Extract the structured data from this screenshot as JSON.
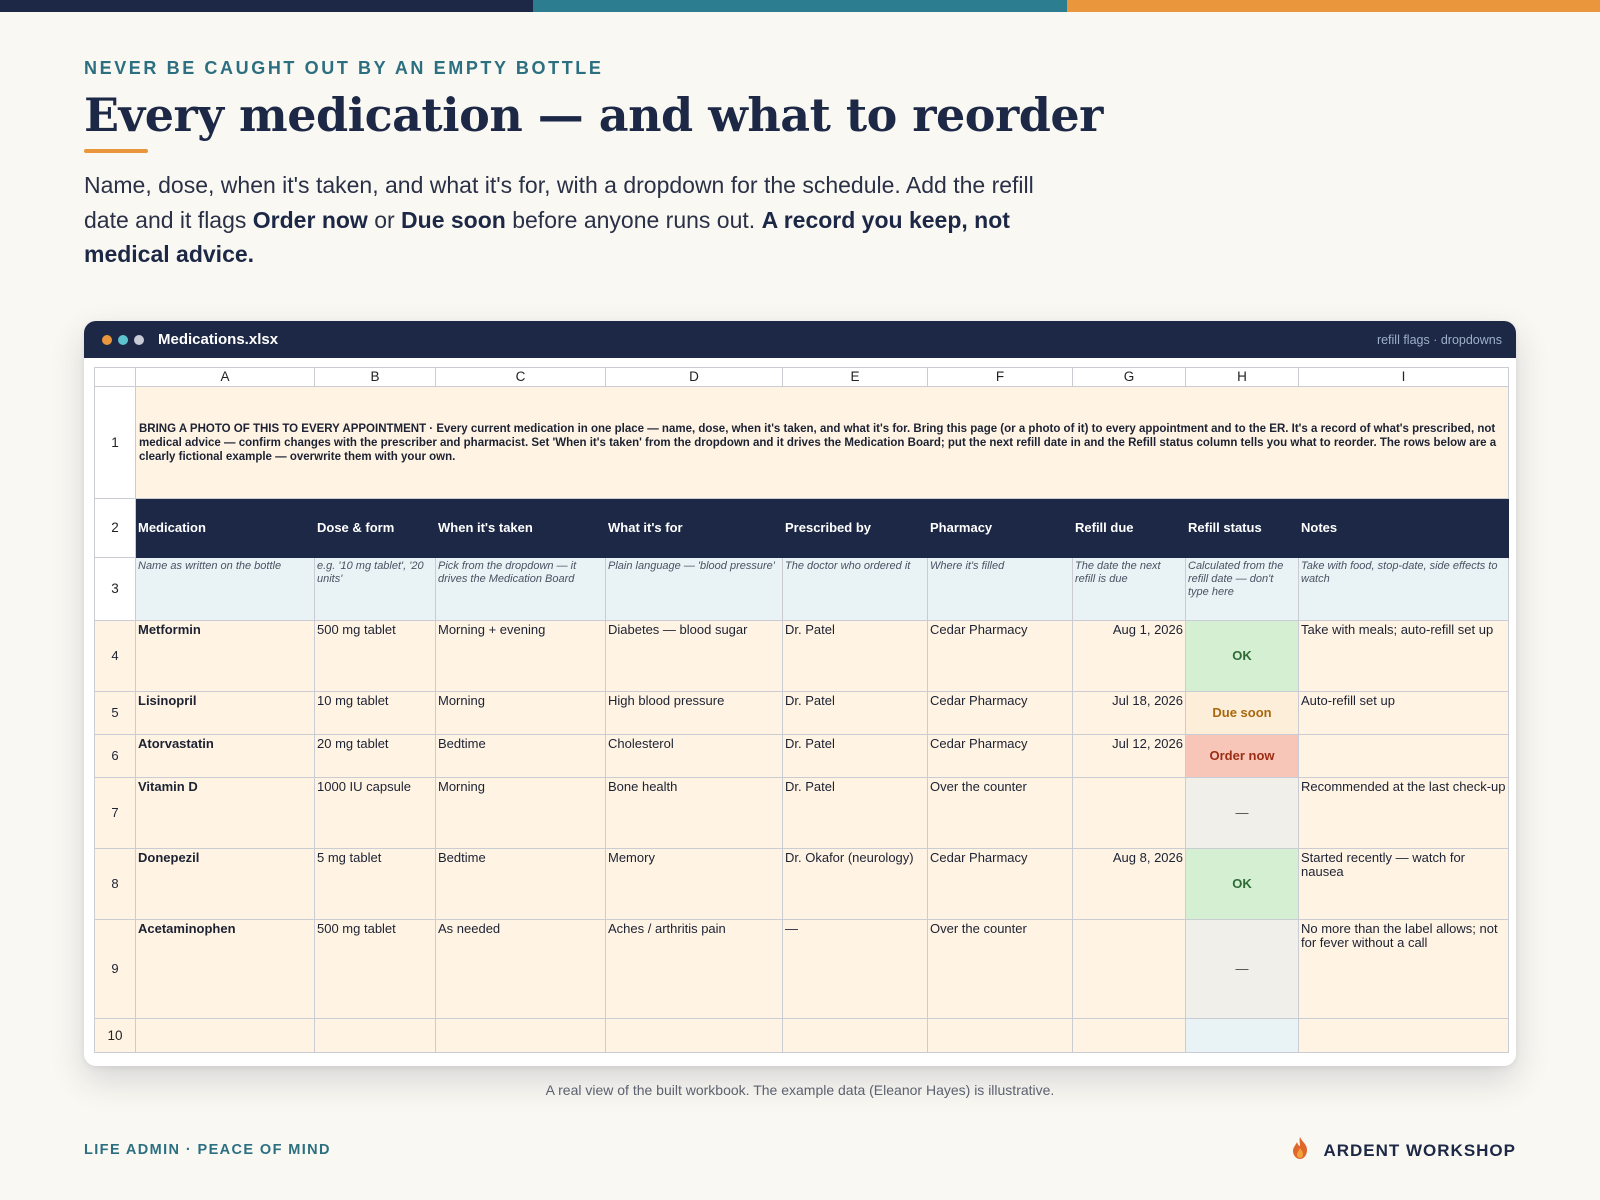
{
  "colors": {
    "navy": "#1c2845",
    "teal": "#2c7d8f",
    "orange": "#e9963c",
    "ok": "#d5efd3",
    "due_soon": "#fdeed9",
    "order_now": "#f7c6b8"
  },
  "eyebrow": "NEVER BE CAUGHT OUT BY AN EMPTY BOTTLE",
  "headline": "Every medication — and what to reorder",
  "intro": {
    "part1": "Name, dose, when it's taken, and what it's for, with a dropdown for the schedule. Add the refill date and it flags ",
    "bold1": "Order now",
    "part2": " or ",
    "bold2": "Due soon",
    "part3": " before anyone runs out. ",
    "bold3": "A record you keep, not medical advice."
  },
  "window": {
    "filename": "Medications.xlsx",
    "tag": "refill flags · dropdowns",
    "dot_colors": [
      "#e9963c",
      "#5fc2cf",
      "#c9ccd6"
    ]
  },
  "sheet": {
    "columns": [
      "A",
      "B",
      "C",
      "D",
      "E",
      "F",
      "G",
      "H",
      "I"
    ],
    "row_numbers": [
      "1",
      "2",
      "3",
      "4",
      "5",
      "6",
      "7",
      "8",
      "9",
      "10"
    ],
    "banner": "BRING A PHOTO OF THIS TO EVERY APPOINTMENT · Every current medication in one place — name, dose, when it's taken, and what it's for. Bring this page (or a photo of it) to every appointment and to the ER. It's a record of what's prescribed, not medical advice — confirm changes with the prescriber and pharmacist. Set 'When it's taken' from the dropdown and it drives the Medication Board; put the next refill date in and the Refill status column tells you what to reorder. The rows below are a clearly fictional example — overwrite them with your own.",
    "headers": [
      "Medication",
      "Dose & form",
      "When it's taken",
      "What it's for",
      "Prescribed by",
      "Pharmacy",
      "Refill due",
      "Refill status",
      "Notes"
    ],
    "hints": [
      "Name as written on the bottle",
      "e.g. '10 mg tablet', '20 units'",
      "Pick from the dropdown — it drives the Medication Board",
      "Plain language — 'blood pressure'",
      "The doctor who ordered it",
      "Where it's filled",
      "The date the next refill is due",
      "Calculated from the refill date — don't type here",
      "Take with food, stop-date, side effects to watch"
    ],
    "rows": [
      {
        "medication": "Metformin",
        "dose": "500 mg tablet",
        "when": "Morning + evening",
        "for": "Diabetes — blood sugar",
        "prescriber": "Dr. Patel",
        "pharmacy": "Cedar Pharmacy",
        "refill": "Aug 1, 2026",
        "status": "OK",
        "status_kind": "ok",
        "notes": "Take with meals; auto-refill set up"
      },
      {
        "medication": "Lisinopril",
        "dose": "10 mg tablet",
        "when": "Morning",
        "for": "High blood pressure",
        "prescriber": "Dr. Patel",
        "pharmacy": "Cedar Pharmacy",
        "refill": "Jul 18, 2026",
        "status": "Due soon",
        "status_kind": "due",
        "notes": "Auto-refill set up"
      },
      {
        "medication": "Atorvastatin",
        "dose": "20 mg tablet",
        "when": "Bedtime",
        "for": "Cholesterol",
        "prescriber": "Dr. Patel",
        "pharmacy": "Cedar Pharmacy",
        "refill": "Jul 12, 2026",
        "status": "Order now",
        "status_kind": "order",
        "notes": ""
      },
      {
        "medication": "Vitamin D",
        "dose": "1000 IU capsule",
        "when": "Morning",
        "for": "Bone health",
        "prescriber": "Dr. Patel",
        "pharmacy": "Over the counter",
        "refill": "",
        "status": "—",
        "status_kind": "none",
        "notes": "Recommended at the last check-up"
      },
      {
        "medication": "Donepezil",
        "dose": "5 mg tablet",
        "when": "Bedtime",
        "for": "Memory",
        "prescriber": "Dr. Okafor (neurology)",
        "pharmacy": "Cedar Pharmacy",
        "refill": "Aug 8, 2026",
        "status": "OK",
        "status_kind": "ok",
        "notes": "Started recently — watch for nausea"
      },
      {
        "medication": "Acetaminophen",
        "dose": "500 mg tablet",
        "when": "As needed",
        "for": "Aches / arthritis pain",
        "prescriber": "—",
        "pharmacy": "Over the counter",
        "refill": "",
        "status": "—",
        "status_kind": "none",
        "notes": "No more than the label allows; not for fever without a call"
      }
    ]
  },
  "caption": "A real view of the built workbook. The example data (Eleanor Hayes) is illustrative.",
  "footer": {
    "left": "LIFE ADMIN · PEACE OF MIND",
    "brand": "ARDENT WORKSHOP",
    "logo_icon": "flame-icon"
  }
}
